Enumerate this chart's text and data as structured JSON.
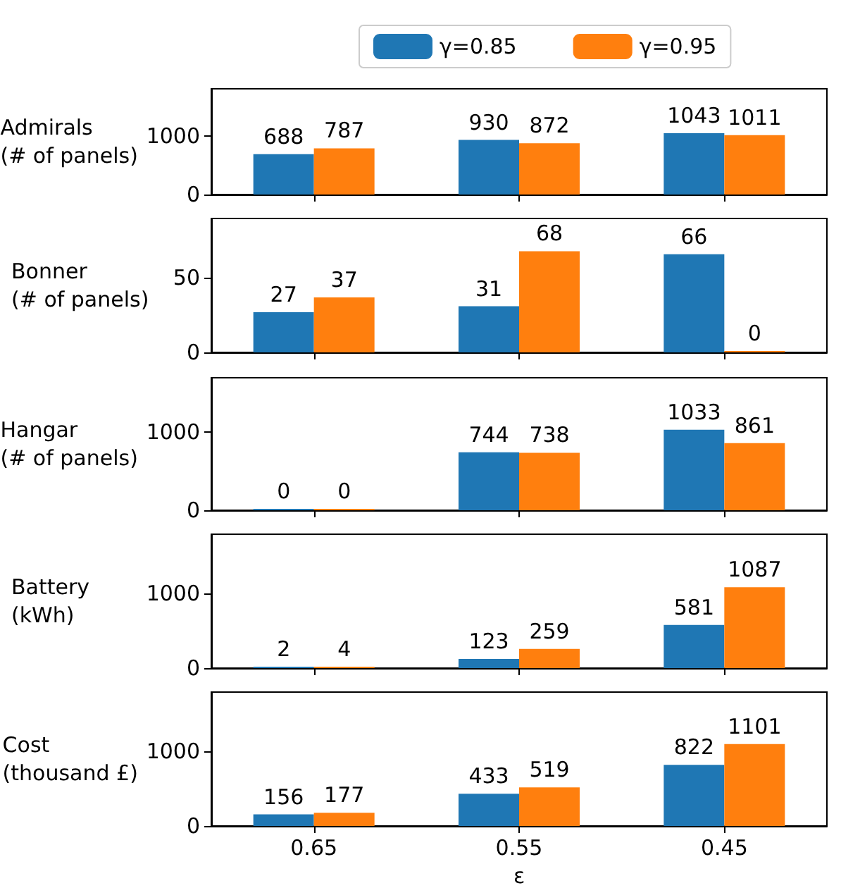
{
  "chart_data": [
    {
      "type": "bar",
      "categories": [
        "0.65",
        "0.55",
        "0.45"
      ],
      "ylabel": "Admirals\n(# of panels)",
      "ylim": [
        0,
        1800
      ],
      "yticks": [
        0,
        1000
      ],
      "data_labels": true,
      "legend": "top",
      "tick_labels": "y",
      "series": [
        {
          "name": "γ=0.85",
          "color": "#1f77b4",
          "values": [
            688,
            930,
            1043
          ]
        },
        {
          "name": "γ=0.95",
          "color": "#ff7f0e",
          "values": [
            787,
            872,
            1011
          ]
        }
      ]
    },
    {
      "type": "bar",
      "categories": [
        "0.65",
        "0.55",
        "0.45"
      ],
      "ylabel": "Bonner\n(# of panels)",
      "ylim": [
        0,
        90
      ],
      "yticks": [
        0,
        50
      ],
      "data_labels": true,
      "tick_labels": "y",
      "series": [
        {
          "color": "#1f77b4",
          "values": [
            27,
            31,
            66
          ]
        },
        {
          "color": "#ff7f0e",
          "values": [
            37,
            68,
            0
          ]
        }
      ]
    },
    {
      "type": "bar",
      "categories": [
        "0.65",
        "0.55",
        "0.45"
      ],
      "ylabel": "Hangar\n(# of panels)",
      "ylim": [
        0,
        1700
      ],
      "yticks": [
        0,
        1000
      ],
      "data_labels": true,
      "tick_labels": "y",
      "series": [
        {
          "color": "#1f77b4",
          "values": [
            0,
            744,
            1033
          ]
        },
        {
          "color": "#ff7f0e",
          "values": [
            0,
            738,
            861
          ]
        }
      ]
    },
    {
      "type": "bar",
      "categories": [
        "0.65",
        "0.55",
        "0.45"
      ],
      "ylabel": "Battery\n(kWh)",
      "ylim": [
        0,
        1800
      ],
      "yticks": [
        0,
        1000
      ],
      "data_labels": true,
      "tick_labels": "y",
      "series": [
        {
          "color": "#1f77b4",
          "values": [
            2,
            123,
            581
          ]
        },
        {
          "color": "#ff7f0e",
          "values": [
            4,
            259,
            1087
          ]
        }
      ]
    },
    {
      "type": "bar",
      "categories": [
        "0.65",
        "0.55",
        "0.45"
      ],
      "ylabel": "Cost\n(thousand £)",
      "xlabel": "ε",
      "ylim": [
        0,
        1800
      ],
      "yticks": [
        0,
        1000
      ],
      "data_labels": true,
      "series": [
        {
          "color": "#1f77b4",
          "values": [
            156,
            433,
            822
          ]
        },
        {
          "color": "#ff7f0e",
          "values": [
            177,
            519,
            1101
          ]
        }
      ]
    }
  ]
}
